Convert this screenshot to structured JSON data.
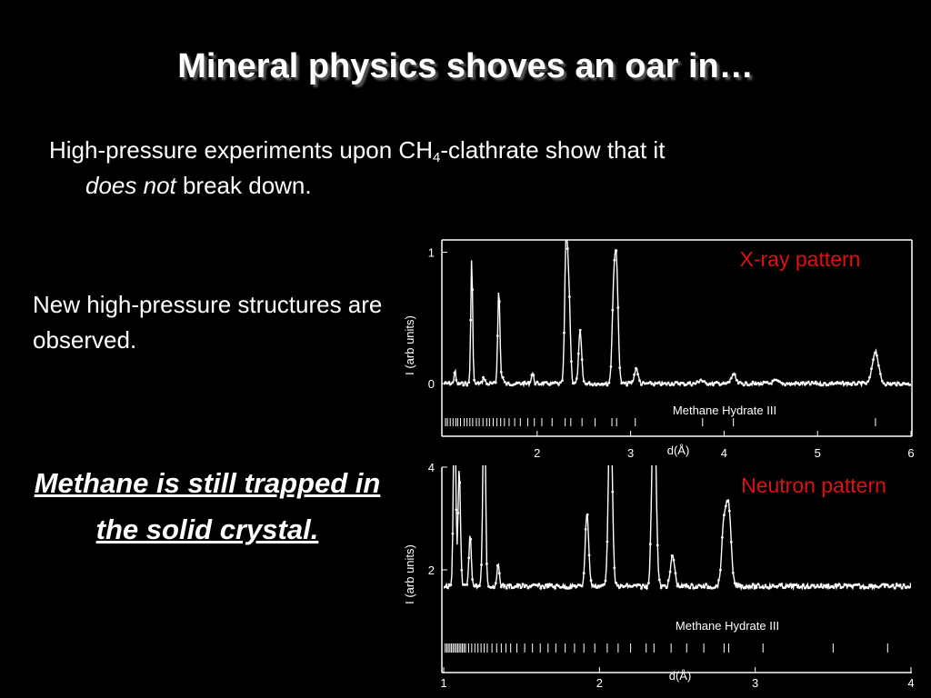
{
  "slide": {
    "title": "Mineral physics shoves an oar in…",
    "bullet1_before": "High-pressure experiments upon CH",
    "bullet1_sub": "4",
    "bullet1_after": "-clathrate show that it",
    "bullet1_em": "does not",
    "bullet1_end": " break down.",
    "bullet2": "New high-pressure structures are observed.",
    "conclusion": "Methane is still trapped in the solid crystal."
  },
  "colors": {
    "background": "#000000",
    "text": "#ffffff",
    "annotation": "#e01010"
  },
  "chart_data": [
    {
      "type": "line",
      "title": "X-ray pattern",
      "xlabel": "d(Å)",
      "ylabel": "I (arb units)",
      "phase_label": "Methane Hydrate III",
      "xlim": [
        1.0,
        6.0
      ],
      "ylim": [
        -0.4,
        1.08
      ],
      "xticks": [
        2,
        3,
        4,
        5,
        6
      ],
      "yticks": [
        0,
        1
      ],
      "baseline": 0.0,
      "peaks": [
        {
          "x": 1.12,
          "y": 0.1
        },
        {
          "x": 1.3,
          "y": 0.95
        },
        {
          "x": 1.43,
          "y": 0.05
        },
        {
          "x": 1.59,
          "y": 0.72
        },
        {
          "x": 1.63,
          "y": 0.05
        },
        {
          "x": 1.95,
          "y": 0.08
        },
        {
          "x": 2.31,
          "y": 1.05
        },
        {
          "x": 2.34,
          "y": 0.65
        },
        {
          "x": 2.46,
          "y": 0.4
        },
        {
          "x": 2.82,
          "y": 0.65
        },
        {
          "x": 2.85,
          "y": 0.8
        },
        {
          "x": 3.06,
          "y": 0.12
        },
        {
          "x": 3.75,
          "y": 0.03
        },
        {
          "x": 4.1,
          "y": 0.07
        },
        {
          "x": 4.55,
          "y": 0.02
        },
        {
          "x": 5.62,
          "y": 0.25
        }
      ],
      "reflections": [
        1.02,
        1.04,
        1.07,
        1.1,
        1.13,
        1.15,
        1.18,
        1.22,
        1.25,
        1.28,
        1.31,
        1.35,
        1.38,
        1.42,
        1.46,
        1.49,
        1.53,
        1.57,
        1.61,
        1.65,
        1.7,
        1.76,
        1.82,
        1.9,
        1.97,
        2.05,
        2.16,
        2.3,
        2.36,
        2.48,
        2.62,
        2.8,
        2.85,
        3.05,
        3.77,
        4.1,
        5.62
      ]
    },
    {
      "type": "line",
      "title": "Neutron pattern",
      "xlabel": "d(Å)",
      "ylabel": "I (arb units)",
      "phase_label": "Methane Hydrate III",
      "xlim": [
        1.0,
        4.0
      ],
      "ylim": [
        0.0,
        4.0
      ],
      "xticks": [
        1,
        2,
        3,
        4
      ],
      "yticks": [
        2,
        4
      ],
      "baseline": 1.68,
      "peaks": [
        {
          "x": 1.07,
          "y": 4.0
        },
        {
          "x": 1.1,
          "y": 2.3
        },
        {
          "x": 1.17,
          "y": 1.0
        },
        {
          "x": 1.26,
          "y": 4.0
        },
        {
          "x": 1.35,
          "y": 0.4
        },
        {
          "x": 1.92,
          "y": 1.45
        },
        {
          "x": 2.07,
          "y": 4.0
        },
        {
          "x": 2.35,
          "y": 4.0
        },
        {
          "x": 2.47,
          "y": 0.6
        },
        {
          "x": 2.8,
          "y": 1.2
        },
        {
          "x": 2.83,
          "y": 1.5
        }
      ],
      "reflections": [
        1.01,
        1.02,
        1.03,
        1.04,
        1.05,
        1.06,
        1.07,
        1.08,
        1.09,
        1.1,
        1.11,
        1.12,
        1.13,
        1.14,
        1.16,
        1.18,
        1.2,
        1.22,
        1.24,
        1.26,
        1.28,
        1.31,
        1.34,
        1.37,
        1.4,
        1.43,
        1.47,
        1.52,
        1.57,
        1.62,
        1.67,
        1.72,
        1.78,
        1.84,
        1.9,
        1.97,
        2.05,
        2.12,
        2.2,
        2.3,
        2.35,
        2.46,
        2.56,
        2.67,
        2.8,
        2.83,
        3.05,
        3.5,
        3.85
      ]
    }
  ]
}
